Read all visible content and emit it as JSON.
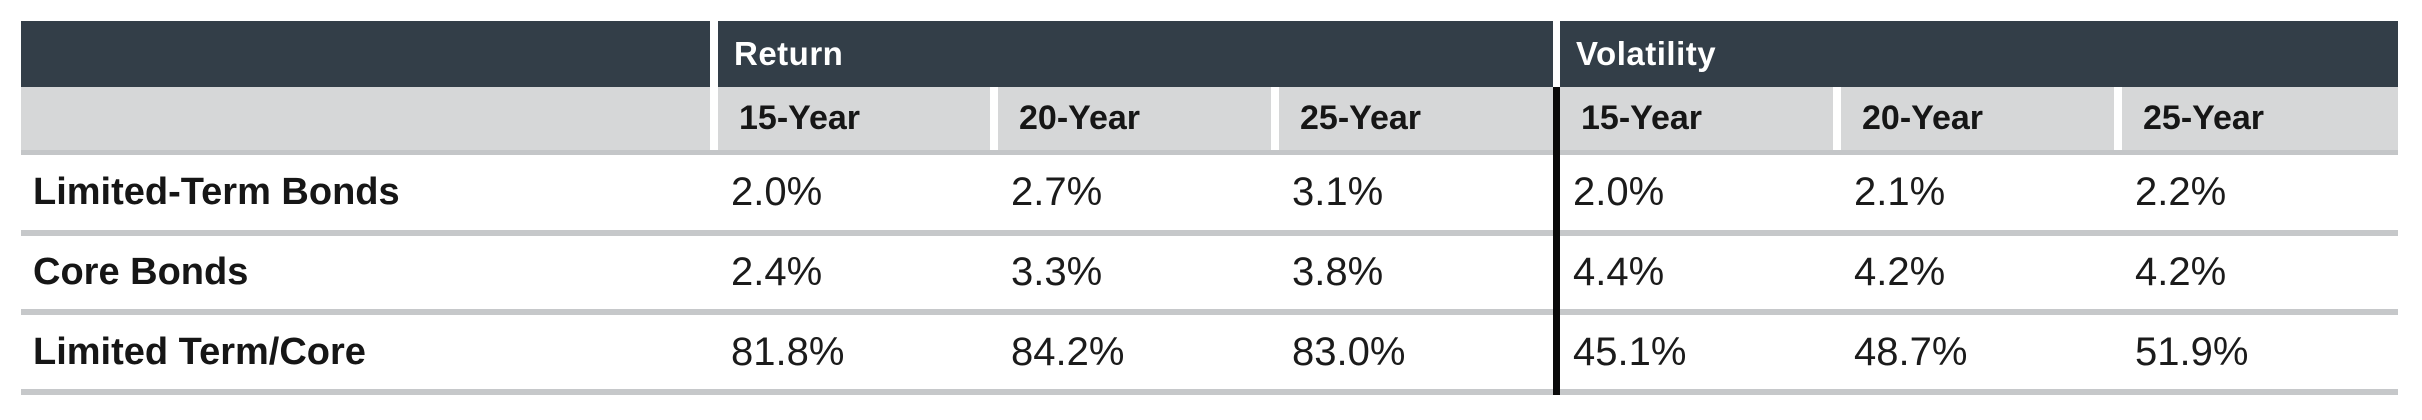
{
  "table": {
    "groups": {
      "return": "Return",
      "volatility": "Volatility"
    },
    "sub_headers": [
      "15-Year",
      "20-Year",
      "25-Year"
    ],
    "rows": [
      {
        "label": "Limited-Term Bonds",
        "return": [
          "2.0%",
          "2.7%",
          "3.1%"
        ],
        "volatility": [
          "2.0%",
          "2.1%",
          "2.2%"
        ]
      },
      {
        "label": "Core Bonds",
        "return": [
          "2.4%",
          "3.3%",
          "3.8%"
        ],
        "volatility": [
          "4.4%",
          "4.2%",
          "4.2%"
        ]
      },
      {
        "label": "Limited Term/Core",
        "return": [
          "81.8%",
          "84.2%",
          "83.0%"
        ],
        "volatility": [
          "45.1%",
          "48.7%",
          "51.9%"
        ]
      }
    ],
    "colors": {
      "header_bg": "#333E48",
      "subheader_bg": "#D6D7D8",
      "separator": "#C4C6C8",
      "divider": "#0A0A0A",
      "header_text": "#FFFFFF",
      "body_text": "#1B1B1B"
    }
  },
  "chart_data": {
    "type": "table",
    "column_groups": [
      "Return",
      "Volatility"
    ],
    "columns": [
      "Return 15-Year",
      "Return 20-Year",
      "Return 25-Year",
      "Volatility 15-Year",
      "Volatility 20-Year",
      "Volatility 25-Year"
    ],
    "rows": [
      {
        "label": "Limited-Term Bonds",
        "values_pct": [
          2.0,
          2.7,
          3.1,
          2.0,
          2.1,
          2.2
        ]
      },
      {
        "label": "Core Bonds",
        "values_pct": [
          2.4,
          3.3,
          3.8,
          4.4,
          4.2,
          4.2
        ]
      },
      {
        "label": "Limited Term/Core",
        "values_pct": [
          81.8,
          84.2,
          83.0,
          45.1,
          48.7,
          51.9
        ]
      }
    ],
    "units": "percent"
  }
}
